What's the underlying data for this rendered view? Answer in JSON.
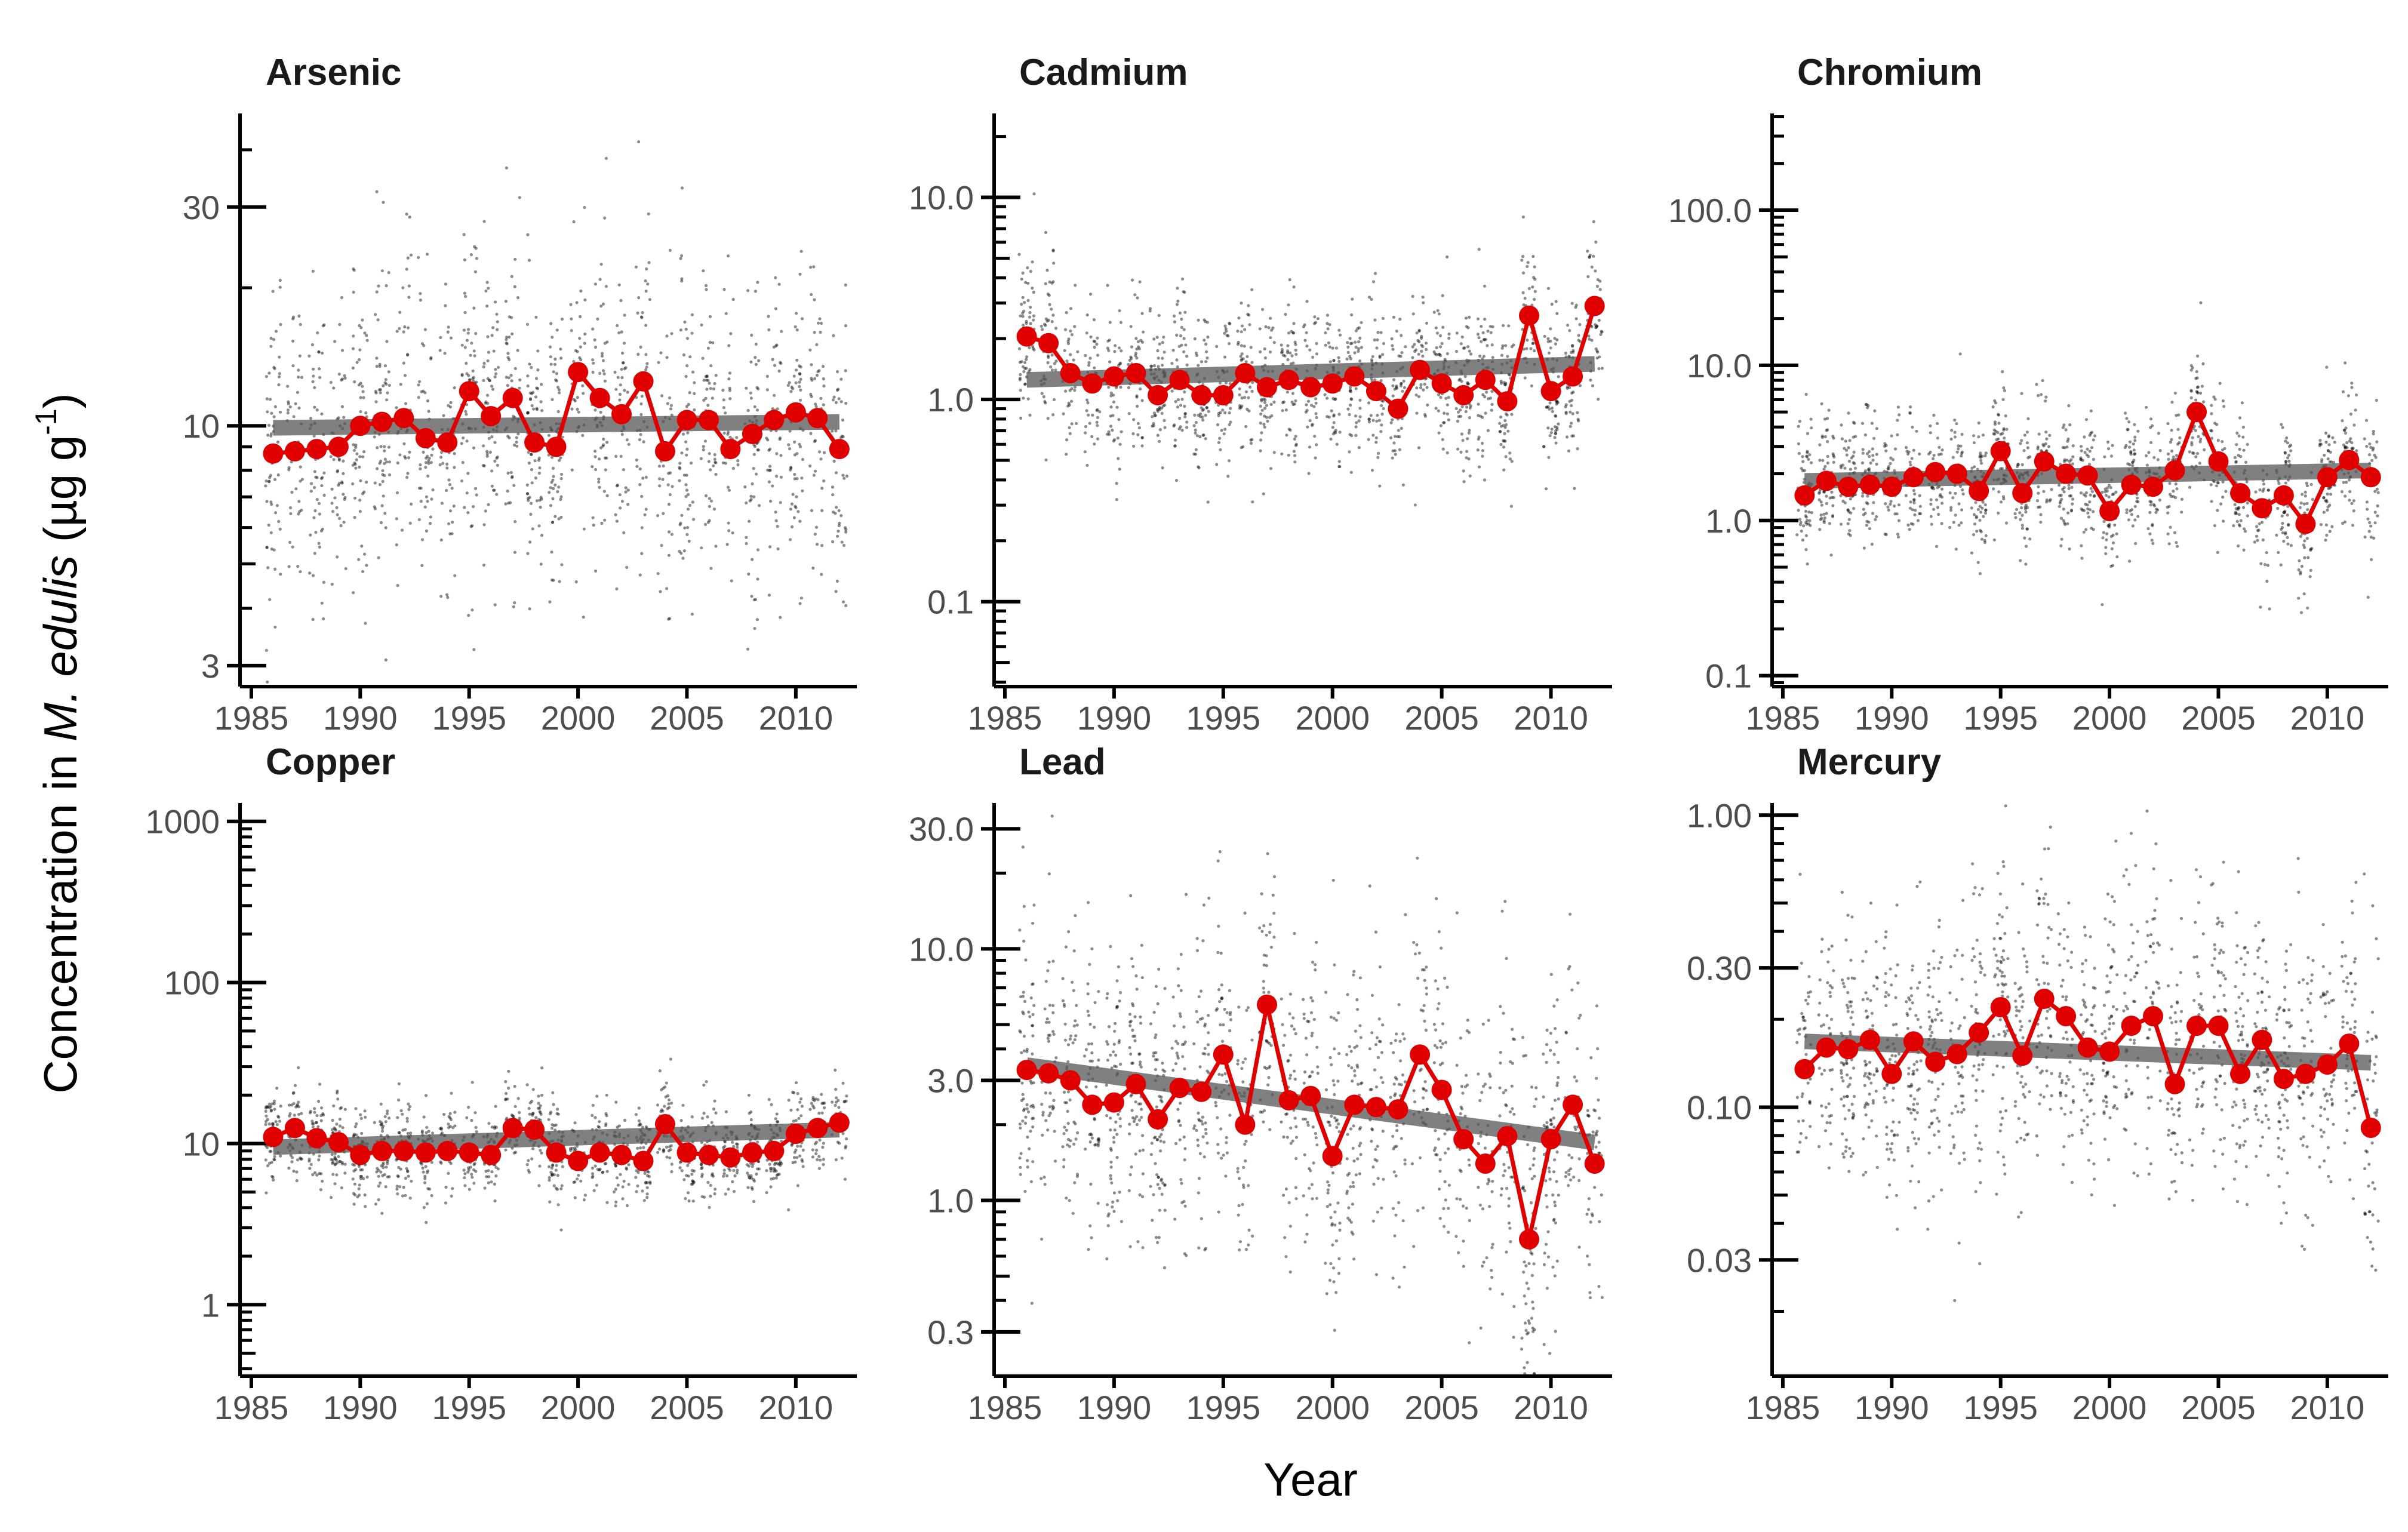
{
  "figure": {
    "xlabel": "Year",
    "ylabel": {
      "prefix": "Concentration in ",
      "species": "M. edulis",
      "open": " (",
      "unit_mu": "µ",
      "unit_g": "g g",
      "unit_exp": "-1",
      "close": ")"
    },
    "colors": {
      "mean": "#e00000",
      "trend": "#555555",
      "raw": "#000000"
    }
  },
  "chart_data": [
    {
      "type": "scatter",
      "title": "Arsenic",
      "log_y": true,
      "ylim": [
        2.7,
        48
      ],
      "ticks": [
        {
          "v": 3,
          "label": "3"
        },
        {
          "v": 10,
          "label": "10"
        },
        {
          "v": 30,
          "label": "30"
        }
      ],
      "xlim": [
        1984.7,
        2012.8
      ],
      "xticks": [
        1985,
        1990,
        1995,
        2000,
        2005,
        2010
      ],
      "years": [
        1986,
        1987,
        1988,
        1989,
        1990,
        1991,
        1992,
        1993,
        1994,
        1995,
        1996,
        1997,
        1998,
        1999,
        2000,
        2001,
        2002,
        2003,
        2004,
        2005,
        2006,
        2007,
        2008,
        2009,
        2010,
        2011,
        2012
      ],
      "means": [
        8.7,
        8.8,
        8.9,
        9.0,
        10.0,
        10.2,
        10.4,
        9.4,
        9.2,
        11.9,
        10.5,
        11.5,
        9.2,
        9.0,
        13.1,
        11.5,
        10.6,
        12.5,
        8.8,
        10.3,
        10.3,
        8.9,
        9.6,
        10.3,
        10.7,
        10.4,
        8.9
      ],
      "trend": [
        [
          1986,
          9.9
        ],
        [
          2012,
          10.2
        ]
      ],
      "raw_spread": 0.17
    },
    {
      "type": "scatter",
      "title": "Cadmium",
      "log_y": true,
      "ylim": [
        0.038,
        26
      ],
      "ticks": [
        {
          "v": 0.1,
          "label": "0.1"
        },
        {
          "v": 1,
          "label": "1.0"
        },
        {
          "v": 10,
          "label": "10.0"
        }
      ],
      "xlim": [
        1984.7,
        2012.8
      ],
      "xticks": [
        1985,
        1990,
        1995,
        2000,
        2005,
        2010
      ],
      "years": [
        1986,
        1987,
        1988,
        1989,
        1990,
        1991,
        1992,
        1993,
        1994,
        1995,
        1996,
        1997,
        1998,
        1999,
        2000,
        2001,
        2002,
        2003,
        2004,
        2005,
        2006,
        2007,
        2008,
        2009,
        2010,
        2011,
        2012
      ],
      "means": [
        2.05,
        1.9,
        1.35,
        1.2,
        1.3,
        1.35,
        1.05,
        1.25,
        1.05,
        1.05,
        1.35,
        1.15,
        1.25,
        1.15,
        1.2,
        1.3,
        1.1,
        0.9,
        1.4,
        1.2,
        1.05,
        1.25,
        0.98,
        2.6,
        1.1,
        1.3,
        2.9
      ],
      "trend": [
        [
          1986,
          1.25
        ],
        [
          2012,
          1.5
        ]
      ],
      "raw_spread": 0.2
    },
    {
      "type": "scatter",
      "title": "Chromium",
      "log_y": true,
      "ylim": [
        0.085,
        420
      ],
      "ticks": [
        {
          "v": 0.1,
          "label": "0.1"
        },
        {
          "v": 1,
          "label": "1.0"
        },
        {
          "v": 10,
          "label": "10.0"
        },
        {
          "v": 100,
          "label": "100.0"
        }
      ],
      "xlim": [
        1984.7,
        2012.8
      ],
      "xticks": [
        1985,
        1990,
        1995,
        2000,
        2005,
        2010
      ],
      "years": [
        1986,
        1987,
        1988,
        1989,
        1990,
        1991,
        1992,
        1993,
        1994,
        1995,
        1996,
        1997,
        1998,
        1999,
        2000,
        2001,
        2002,
        2003,
        2004,
        2005,
        2006,
        2007,
        2008,
        2009,
        2010,
        2011,
        2012
      ],
      "means": [
        1.45,
        1.8,
        1.65,
        1.7,
        1.65,
        1.9,
        2.05,
        2.0,
        1.55,
        2.8,
        1.5,
        2.4,
        2.0,
        1.95,
        1.15,
        1.7,
        1.65,
        2.1,
        5.0,
        2.4,
        1.5,
        1.2,
        1.45,
        0.95,
        1.9,
        2.45,
        1.9
      ],
      "trend": [
        [
          1986,
          1.8
        ],
        [
          2012,
          2.1
        ]
      ],
      "raw_spread": 0.22
    },
    {
      "type": "scatter",
      "title": "Copper",
      "log_y": true,
      "ylim": [
        0.36,
        1300
      ],
      "ticks": [
        {
          "v": 1,
          "label": "1"
        },
        {
          "v": 10,
          "label": "10"
        },
        {
          "v": 100,
          "label": "100"
        },
        {
          "v": 1000,
          "label": "1000"
        }
      ],
      "xlim": [
        1984.7,
        2012.8
      ],
      "xticks": [
        1985,
        1990,
        1995,
        2000,
        2005,
        2010
      ],
      "years": [
        1986,
        1987,
        1988,
        1989,
        1990,
        1991,
        1992,
        1993,
        1994,
        1995,
        1996,
        1997,
        1998,
        1999,
        2000,
        2001,
        2002,
        2003,
        2004,
        2005,
        2006,
        2007,
        2008,
        2009,
        2010,
        2011,
        2012
      ],
      "means": [
        11.0,
        12.5,
        10.8,
        10.2,
        8.5,
        9.0,
        9.0,
        8.8,
        9.0,
        8.8,
        8.5,
        12.5,
        12.2,
        8.8,
        7.8,
        8.8,
        8.5,
        7.8,
        13.2,
        8.8,
        8.5,
        8.2,
        8.8,
        9.0,
        11.5,
        12.5,
        13.5
      ],
      "trend": [
        [
          1986,
          9.5
        ],
        [
          2012,
          12.2
        ]
      ],
      "raw_spread": 0.14
    },
    {
      "type": "scatter",
      "title": "Lead",
      "log_y": true,
      "ylim": [
        0.2,
        38
      ],
      "ticks": [
        {
          "v": 0.3,
          "label": "0.3"
        },
        {
          "v": 1,
          "label": "1.0"
        },
        {
          "v": 3,
          "label": "3.0"
        },
        {
          "v": 10,
          "label": "10.0"
        },
        {
          "v": 30,
          "label": "30.0"
        }
      ],
      "xlim": [
        1984.7,
        2012.8
      ],
      "xticks": [
        1985,
        1990,
        1995,
        2000,
        2005,
        2010
      ],
      "years": [
        1986,
        1987,
        1988,
        1989,
        1990,
        1991,
        1992,
        1993,
        1994,
        1995,
        1996,
        1997,
        1998,
        1999,
        2000,
        2001,
        2002,
        2003,
        2004,
        2005,
        2006,
        2007,
        2008,
        2009,
        2010,
        2011,
        2012
      ],
      "means": [
        3.3,
        3.2,
        3.0,
        2.4,
        2.45,
        2.9,
        2.1,
        2.8,
        2.7,
        3.8,
        2.0,
        6.0,
        2.5,
        2.6,
        1.5,
        2.4,
        2.35,
        2.3,
        3.8,
        2.75,
        1.75,
        1.4,
        1.8,
        0.7,
        1.75,
        2.4,
        1.4
      ],
      "trend": [
        [
          1986,
          3.45
        ],
        [
          2012,
          1.7
        ]
      ],
      "raw_spread": 0.3
    },
    {
      "type": "scatter",
      "title": "Mercury",
      "log_y": true,
      "ylim": [
        0.012,
        1.1
      ],
      "ticks": [
        {
          "v": 0.03,
          "label": "0.03"
        },
        {
          "v": 0.1,
          "label": "0.10"
        },
        {
          "v": 0.3,
          "label": "0.30"
        },
        {
          "v": 1,
          "label": "1.00"
        }
      ],
      "xlim": [
        1984.7,
        2012.8
      ],
      "xticks": [
        1985,
        1990,
        1995,
        2000,
        2005,
        2010
      ],
      "years": [
        1986,
        1987,
        1988,
        1989,
        1990,
        1991,
        1992,
        1993,
        1994,
        1995,
        1996,
        1997,
        1998,
        1999,
        2000,
        2001,
        2002,
        2003,
        2004,
        2005,
        2006,
        2007,
        2008,
        2009,
        2010,
        2011,
        2012
      ],
      "means": [
        0.135,
        0.16,
        0.158,
        0.17,
        0.13,
        0.168,
        0.143,
        0.152,
        0.18,
        0.22,
        0.15,
        0.235,
        0.205,
        0.16,
        0.155,
        0.19,
        0.205,
        0.12,
        0.19,
        0.19,
        0.13,
        0.17,
        0.125,
        0.13,
        0.14,
        0.165,
        0.085
      ],
      "trend": [
        [
          1986,
          0.168
        ],
        [
          2012,
          0.142
        ]
      ],
      "raw_spread": 0.25
    }
  ]
}
